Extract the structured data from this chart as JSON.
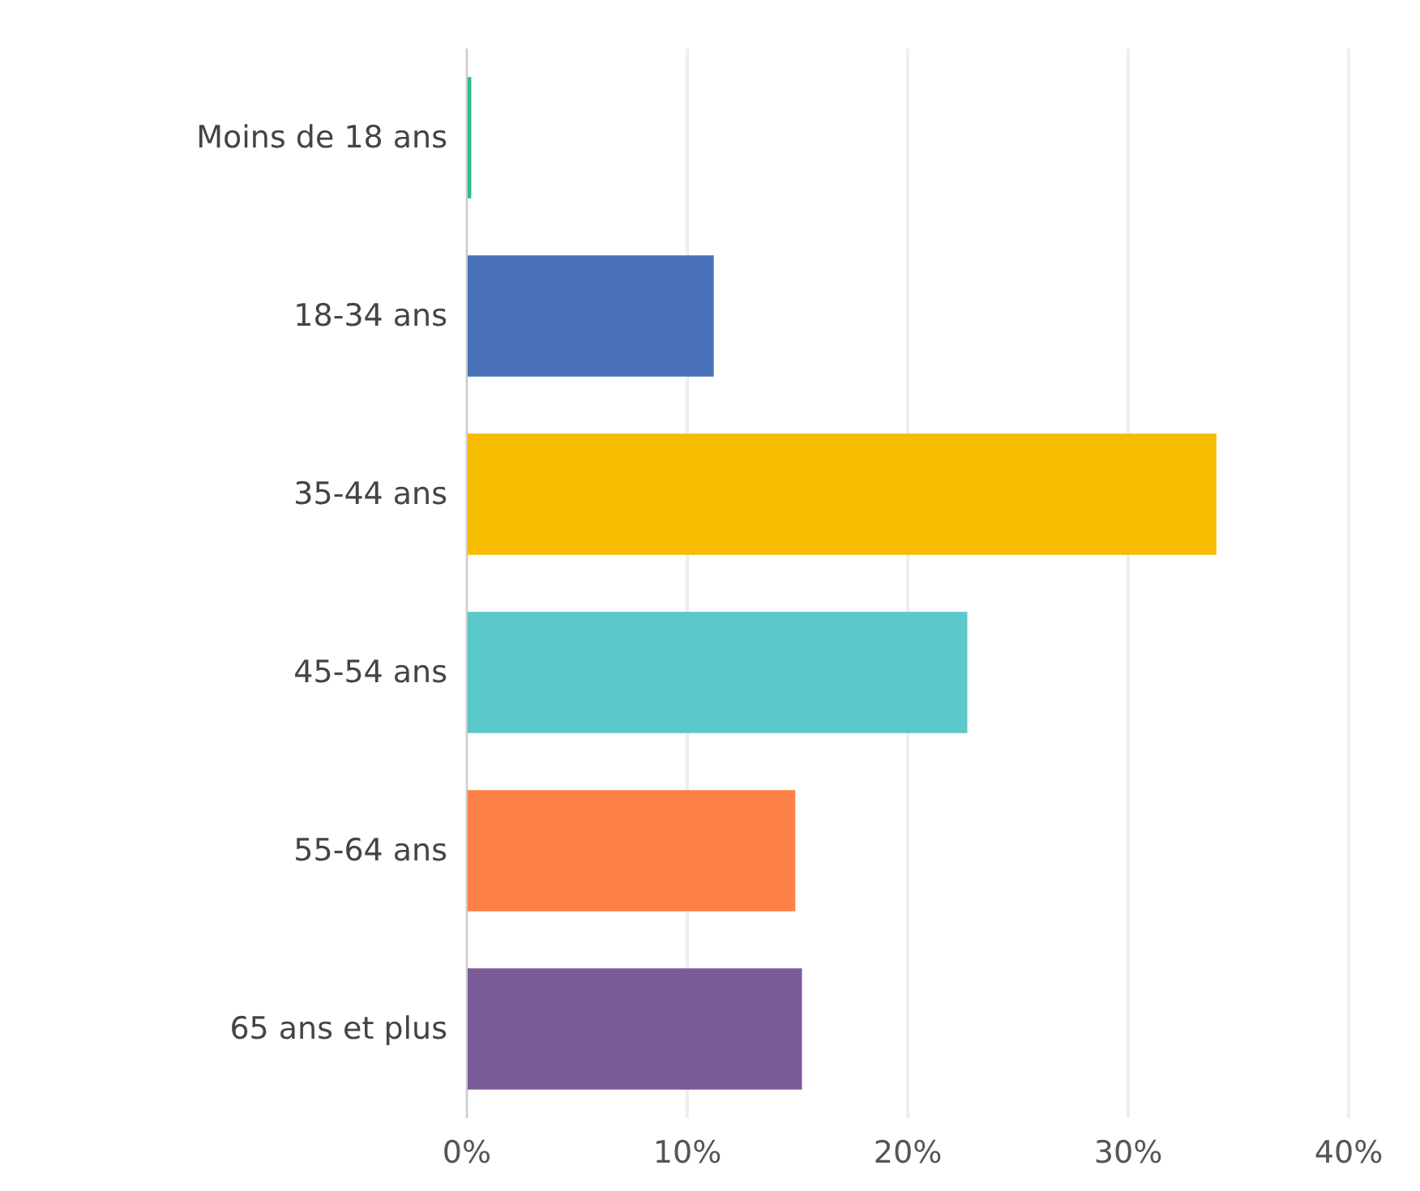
{
  "chart_data": {
    "type": "bar",
    "orientation": "horizontal",
    "categories": [
      "Moins de 18 ans",
      "18-34 ans",
      "35-44 ans",
      "45-54 ans",
      "55-64 ans",
      "65 ans et plus"
    ],
    "values": [
      0.2,
      11.2,
      34.0,
      22.7,
      14.9,
      15.2
    ],
    "colors": [
      "#2dbd8a",
      "#4a72b8",
      "#f5bc00",
      "#5bc8cc",
      "#ff8046",
      "#7b5a98"
    ],
    "xlim": [
      0,
      40
    ],
    "xticks": [
      {
        "value": 0,
        "label": "0%"
      },
      {
        "value": 10,
        "label": "10%"
      },
      {
        "value": 20,
        "label": "20%"
      },
      {
        "value": 30,
        "label": "30%"
      },
      {
        "value": 40,
        "label": "40%"
      }
    ],
    "grid": "x"
  }
}
